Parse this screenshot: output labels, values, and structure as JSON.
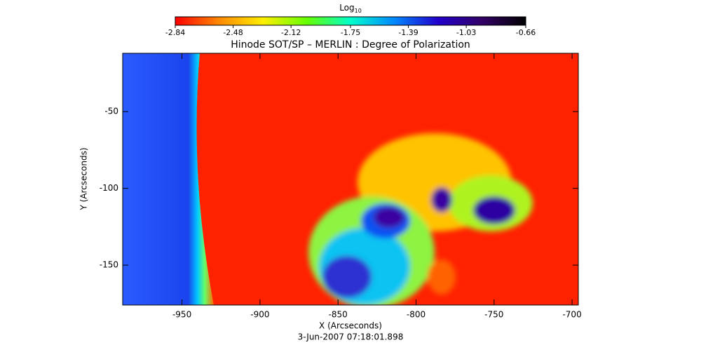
{
  "chart_data": {
    "type": "heatmap",
    "title": "Hinode SOT/SP – MERLIN : Degree of Polarization",
    "x_label": "X (Arcseconds)",
    "y_label": "Y (Arcseconds)",
    "footnote": "3-Jun-2007 07:18:01.898",
    "colorbar_label": "Log",
    "colorbar_label_subscript": "10",
    "colorbar_lim": [
      -2.84,
      -0.66
    ],
    "colorbar_ticks": [
      -2.84,
      -2.48,
      -2.12,
      -1.75,
      -1.39,
      -1.03,
      -0.66
    ],
    "colormap": [
      "#ff0000",
      "#ff8800",
      "#ffee00",
      "#66ff00",
      "#00ffcc",
      "#0088ff",
      "#2200cc",
      "#330066",
      "#000000"
    ],
    "xlim": [
      -988,
      -696
    ],
    "xticks": [
      -950,
      -900,
      -850,
      -800,
      -750,
      -700
    ],
    "ylim": [
      -176,
      -12
    ],
    "yticks": [
      -50,
      -100,
      -150
    ]
  }
}
